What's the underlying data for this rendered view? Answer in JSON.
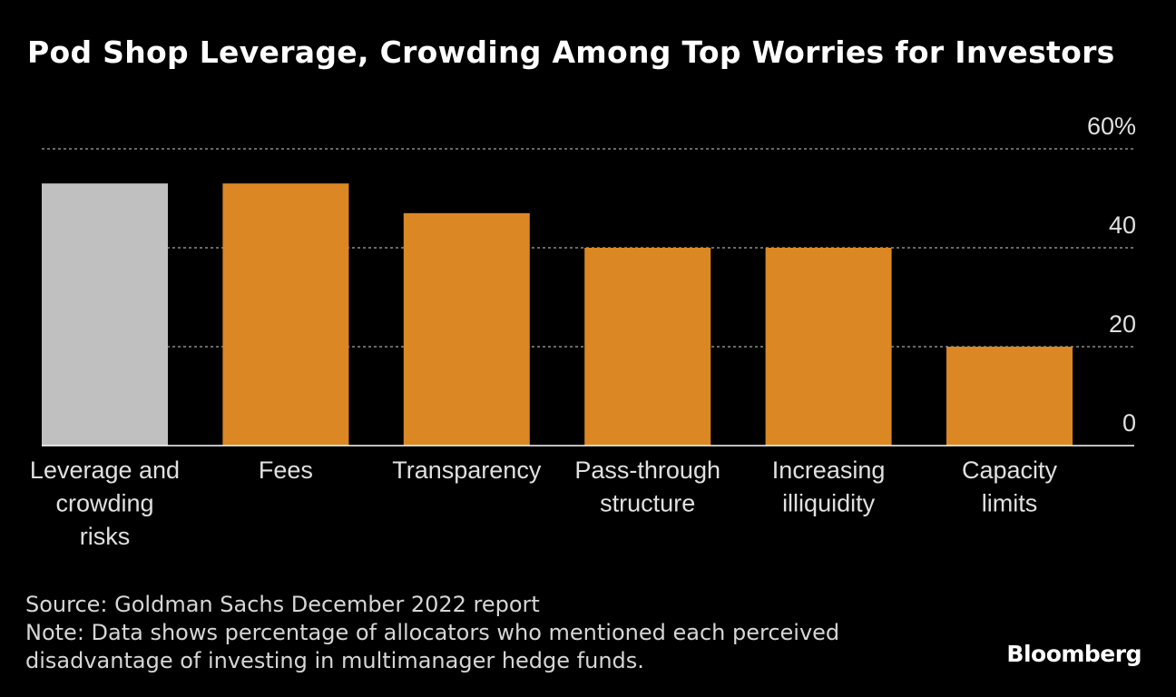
{
  "title": "Pod Shop Leverage, Crowding Among Top Worries for Investors",
  "source": "Source: Goldman Sachs December 2022 report",
  "note": "Note: Data shows percentage of allocators who mentioned each perceived disadvantage of investing in multimanager hedge funds.",
  "brand": "Bloomberg",
  "colors": {
    "highlight": "#c0c0c0",
    "bar": "#da8724",
    "background": "#000000",
    "grid": "#8a8a8a"
  },
  "chart_data": {
    "type": "bar",
    "categories": [
      [
        "Leverage and",
        "crowding",
        "risks"
      ],
      [
        "Fees"
      ],
      [
        "Transparency"
      ],
      [
        "Pass-through",
        "structure"
      ],
      [
        "Increasing",
        "illiquidity"
      ],
      [
        "Capacity",
        "limits"
      ]
    ],
    "values": [
      53,
      53,
      47,
      40,
      40,
      20
    ],
    "highlight_index": 0,
    "ylim": [
      0,
      60
    ],
    "yticks": [
      {
        "value": 0,
        "label": "0"
      },
      {
        "value": 20,
        "label": "20"
      },
      {
        "value": 40,
        "label": "40"
      },
      {
        "value": 60,
        "label": "60%"
      }
    ],
    "grid": true,
    "y_axis_position": "right"
  }
}
